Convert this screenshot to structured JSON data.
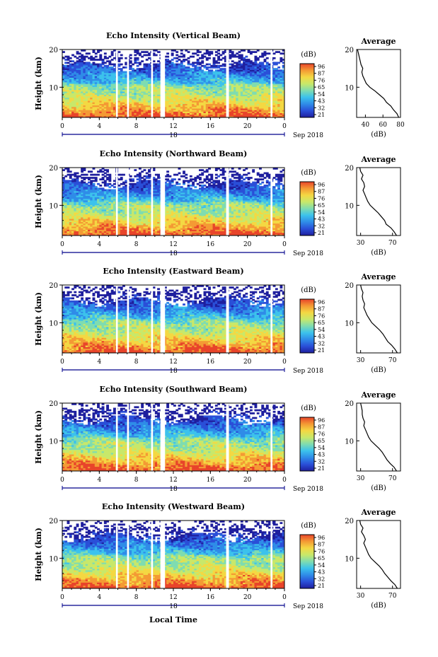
{
  "figure": {
    "date_label": "Sep 2018",
    "x_axis_title": "Local Time",
    "colorbar_unit": "(dB)",
    "colorbar_ticks": [
      "96",
      "87",
      "76",
      "65",
      "54",
      "43",
      "32",
      "21"
    ],
    "colors": {
      "colormap": [
        "#1f1f9e",
        "#2a4fd8",
        "#2f8ce8",
        "#3cc2ec",
        "#7fdcb0",
        "#c8e86a",
        "#f4d843",
        "#f49a34",
        "#e8442a"
      ],
      "missing": "#ffffff"
    }
  },
  "chart_data": [
    {
      "type": "heatmap",
      "title": "Echo Intensity (Vertical Beam)",
      "xlabel": "",
      "ylabel": "Height (km)",
      "x_ticks": [
        "0",
        "4",
        "8",
        "12",
        "16",
        "20",
        "0"
      ],
      "y_ticks": [
        "20",
        "10"
      ],
      "day_label": "18",
      "xlim": [
        0,
        24
      ],
      "ylim": [
        2,
        20
      ],
      "colorbar": {
        "label": "(dB)",
        "ticks": [
          96,
          87,
          76,
          65,
          54,
          43,
          32,
          21
        ]
      },
      "data_gaps_hours": [
        [
          5.8,
          6.0
        ],
        [
          7.0,
          7.2
        ],
        [
          9.6,
          9.8
        ],
        [
          10.6,
          11.1
        ],
        [
          17.7,
          18.0
        ],
        [
          22.5,
          22.7
        ]
      ],
      "average_profile": {
        "title": "Average",
        "xlabel": "(dB)",
        "x_ticks": [
          "40",
          "60",
          "80"
        ],
        "xlim": [
          30,
          80
        ],
        "y_ticks": [
          "20",
          "10"
        ],
        "ylim": [
          2,
          20
        ],
        "height_km": [
          2,
          3,
          4,
          5,
          6,
          7,
          8,
          9,
          10,
          11,
          12,
          13,
          14,
          15,
          16,
          17,
          18,
          19,
          20
        ],
        "value_db": [
          78,
          76,
          72,
          69,
          64,
          61,
          56,
          51,
          45,
          41,
          39,
          37,
          36,
          37,
          35,
          34,
          33,
          32,
          31
        ]
      }
    },
    {
      "type": "heatmap",
      "title": "Echo Intensity (Northward Beam)",
      "xlabel": "",
      "ylabel": "Height (km)",
      "x_ticks": [
        "0",
        "4",
        "8",
        "12",
        "16",
        "20",
        "0"
      ],
      "y_ticks": [
        "20",
        "10"
      ],
      "day_label": "18",
      "xlim": [
        0,
        24
      ],
      "ylim": [
        2,
        20
      ],
      "colorbar": {
        "label": "(dB)",
        "ticks": [
          96,
          87,
          76,
          65,
          54,
          43,
          32,
          21
        ]
      },
      "data_gaps_hours": [
        [
          5.8,
          6.0
        ],
        [
          7.0,
          7.2
        ],
        [
          9.6,
          9.8
        ],
        [
          10.6,
          11.1
        ],
        [
          17.7,
          18.0
        ],
        [
          22.5,
          22.7
        ]
      ],
      "average_profile": {
        "title": "Average",
        "xlabel": "(dB)",
        "x_ticks": [
          "30",
          "70"
        ],
        "xlim": [
          25,
          80
        ],
        "y_ticks": [
          "20",
          "10"
        ],
        "ylim": [
          2,
          20
        ],
        "height_km": [
          2,
          3,
          4,
          5,
          6,
          7,
          8,
          9,
          10,
          11,
          12,
          13,
          14,
          15,
          16,
          17,
          18,
          19,
          20
        ],
        "value_db": [
          75,
          72,
          68,
          62,
          60,
          56,
          52,
          47,
          42,
          39,
          37,
          35,
          33,
          35,
          34,
          31,
          33,
          30,
          29
        ]
      }
    },
    {
      "type": "heatmap",
      "title": "Echo Intensity (Eastward Beam)",
      "xlabel": "",
      "ylabel": "Height (km)",
      "x_ticks": [
        "0",
        "4",
        "8",
        "12",
        "16",
        "20",
        "0"
      ],
      "y_ticks": [
        "20",
        "10"
      ],
      "day_label": "18",
      "xlim": [
        0,
        24
      ],
      "ylim": [
        2,
        20
      ],
      "colorbar": {
        "label": "(dB)",
        "ticks": [
          96,
          87,
          76,
          65,
          54,
          43,
          32,
          21
        ]
      },
      "data_gaps_hours": [
        [
          5.8,
          6.0
        ],
        [
          7.0,
          7.2
        ],
        [
          9.6,
          9.8
        ],
        [
          10.6,
          11.1
        ],
        [
          17.7,
          18.0
        ],
        [
          22.5,
          22.7
        ]
      ],
      "average_profile": {
        "title": "Average",
        "xlabel": "(dB)",
        "x_ticks": [
          "30",
          "70"
        ],
        "xlim": [
          25,
          80
        ],
        "y_ticks": [
          "20",
          "10"
        ],
        "ylim": [
          2,
          20
        ],
        "height_km": [
          2,
          3,
          4,
          5,
          6,
          7,
          8,
          9,
          10,
          11,
          12,
          13,
          14,
          15,
          16,
          17,
          18,
          19,
          20
        ],
        "value_db": [
          76,
          73,
          69,
          64,
          61,
          58,
          54,
          49,
          44,
          41,
          38,
          36,
          34,
          35,
          33,
          32,
          33,
          31,
          30
        ]
      }
    },
    {
      "type": "heatmap",
      "title": "Echo Intensity (Southward Beam)",
      "xlabel": "",
      "ylabel": "Height (km)",
      "x_ticks": [
        "0",
        "4",
        "8",
        "12",
        "16",
        "20",
        "0"
      ],
      "y_ticks": [
        "20",
        "10"
      ],
      "day_label": "18",
      "xlim": [
        0,
        24
      ],
      "ylim": [
        2,
        20
      ],
      "colorbar": {
        "label": "(dB)",
        "ticks": [
          96,
          87,
          76,
          65,
          54,
          43,
          32,
          21
        ]
      },
      "data_gaps_hours": [
        [
          5.8,
          6.0
        ],
        [
          7.0,
          7.2
        ],
        [
          9.6,
          9.8
        ],
        [
          10.6,
          11.1
        ],
        [
          17.7,
          18.0
        ],
        [
          22.5,
          22.7
        ]
      ],
      "average_profile": {
        "title": "Average",
        "xlabel": "(dB)",
        "x_ticks": [
          "30",
          "70"
        ],
        "xlim": [
          25,
          80
        ],
        "y_ticks": [
          "20",
          "10"
        ],
        "ylim": [
          2,
          20
        ],
        "height_km": [
          2,
          3,
          4,
          5,
          6,
          7,
          8,
          9,
          10,
          11,
          12,
          13,
          14,
          15,
          16,
          17,
          18,
          19,
          20
        ],
        "value_db": [
          75,
          72,
          67,
          63,
          60,
          57,
          53,
          48,
          43,
          40,
          38,
          36,
          34,
          35,
          33,
          32,
          32,
          31,
          30
        ]
      }
    },
    {
      "type": "heatmap",
      "title": "Echo Intensity (Westward Beam)",
      "xlabel": "Local Time",
      "ylabel": "Height (km)",
      "x_ticks": [
        "0",
        "4",
        "8",
        "12",
        "16",
        "20",
        "0"
      ],
      "y_ticks": [
        "20",
        "10"
      ],
      "day_label": "18",
      "xlim": [
        0,
        24
      ],
      "ylim": [
        2,
        20
      ],
      "colorbar": {
        "label": "(dB)",
        "ticks": [
          96,
          87,
          76,
          65,
          54,
          43,
          32,
          21
        ]
      },
      "data_gaps_hours": [
        [
          5.8,
          6.0
        ],
        [
          7.0,
          7.2
        ],
        [
          9.6,
          9.8
        ],
        [
          10.6,
          11.1
        ],
        [
          17.7,
          18.0
        ],
        [
          22.5,
          22.7
        ]
      ],
      "average_profile": {
        "title": "Average",
        "xlabel": "(dB)",
        "x_ticks": [
          "30",
          "70"
        ],
        "xlim": [
          25,
          80
        ],
        "y_ticks": [
          "20",
          "10"
        ],
        "ylim": [
          2,
          20
        ],
        "height_km": [
          2,
          3,
          4,
          5,
          6,
          7,
          8,
          9,
          10,
          11,
          12,
          13,
          14,
          15,
          16,
          17,
          18,
          19,
          20
        ],
        "value_db": [
          76,
          73,
          68,
          64,
          60,
          57,
          53,
          48,
          43,
          40,
          38,
          36,
          34,
          36,
          34,
          31,
          33,
          30,
          29
        ]
      }
    }
  ]
}
